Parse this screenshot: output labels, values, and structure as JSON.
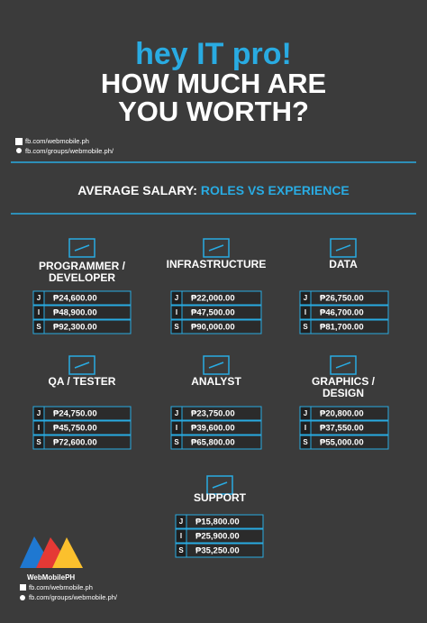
{
  "header": {
    "greeting": "hey IT pro!",
    "title_lines": [
      "HOW MUCH ARE",
      "YOU WORTH?"
    ],
    "facebook_page": "fb.com/webmobile.ph",
    "facebook_group": "fb.com/groups/webmobile.ph/"
  },
  "section": {
    "title_part1": "AVERAGE SALARY:",
    "title_part2": "ROLES VS EXPERIENCE"
  },
  "roles": [
    {
      "title_lines": [
        "PROGRAMMER /",
        "DEVELOPER"
      ],
      "rows": [
        {
          "level": "J",
          "salary": "₱24,600.00"
        },
        {
          "level": "I",
          "salary": "₱48,900.00"
        },
        {
          "level": "S",
          "salary": "₱92,300.00"
        }
      ]
    },
    {
      "title_lines": [
        "INFRASTRUCTURE"
      ],
      "rows": [
        {
          "level": "J",
          "salary": "₱22,000.00"
        },
        {
          "level": "I",
          "salary": "₱47,500.00"
        },
        {
          "level": "S",
          "salary": "₱90,000.00"
        }
      ]
    },
    {
      "title_lines": [
        "DATA"
      ],
      "rows": [
        {
          "level": "J",
          "salary": "₱26,750.00"
        },
        {
          "level": "I",
          "salary": "₱46,700.00"
        },
        {
          "level": "S",
          "salary": "₱81,700.00"
        }
      ]
    },
    {
      "title_lines": [
        "QA / TESTER"
      ],
      "rows": [
        {
          "level": "J",
          "salary": "₱24,750.00"
        },
        {
          "level": "I",
          "salary": "₱45,750.00"
        },
        {
          "level": "S",
          "salary": "₱72,600.00"
        }
      ]
    },
    {
      "title_lines": [
        "ANALYST"
      ],
      "rows": [
        {
          "level": "J",
          "salary": "₱23,750.00"
        },
        {
          "level": "I",
          "salary": "₱39,600.00"
        },
        {
          "level": "S",
          "salary": "₱65,800.00"
        }
      ]
    },
    {
      "title_lines": [
        "GRAPHICS /",
        "DESIGN"
      ],
      "rows": [
        {
          "level": "J",
          "salary": "₱20,800.00"
        },
        {
          "level": "I",
          "salary": "₱37,550.00"
        },
        {
          "level": "S",
          "salary": "₱55,000.00"
        }
      ]
    },
    {
      "title_lines": [
        "SUPPORT"
      ],
      "rows": [
        {
          "level": "J",
          "salary": "₱15,800.00"
        },
        {
          "level": "I",
          "salary": "₱25,900.00"
        },
        {
          "level": "S",
          "salary": "₱35,250.00"
        }
      ]
    }
  ],
  "footer": {
    "brand": "WebMobilePH",
    "facebook_page": "fb.com/webmobile.ph",
    "facebook_group": "fb.com/groups/webmobile.ph/"
  }
}
